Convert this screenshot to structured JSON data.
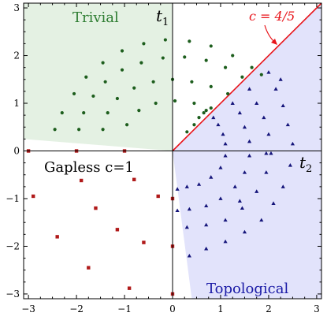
{
  "chart_data": {
    "type": "scatter",
    "xlim": [
      -3.1,
      3.1
    ],
    "ylim": [
      -3.1,
      3.1
    ],
    "xticks": [
      -3,
      -2,
      -1,
      0,
      1,
      2,
      3
    ],
    "yticks": [
      -3,
      -2,
      -1,
      0,
      1,
      2,
      3
    ],
    "xtick_labels": [
      "−3",
      "−2",
      "−1",
      "0",
      "1",
      "2",
      "3"
    ],
    "ytick_labels": [
      "−3",
      "−2",
      "−1",
      "0",
      "1",
      "2",
      "3"
    ],
    "axis_labels": {
      "t1": "t",
      "t1_sub": "1",
      "t2": "t",
      "t2_sub": "2"
    },
    "regions": [
      {
        "name": "trivial",
        "label": "Trivial",
        "fill": "#e4f1e3",
        "text_color": "#2e7d32",
        "polygon": [
          [
            -3.1,
            3.1
          ],
          [
            0,
            3.1
          ],
          [
            0,
            0
          ],
          [
            -3.1,
            0.25
          ]
        ]
      },
      {
        "name": "topological",
        "label": "Topological",
        "fill": "#e2e3fb",
        "text_color": "#1a1aa6",
        "polygon": [
          [
            3.1,
            -3.1
          ],
          [
            3.1,
            3.1
          ],
          [
            0,
            0
          ],
          [
            0.4,
            -3.1
          ]
        ]
      }
    ],
    "gapless_label": "Gapless c=1",
    "critical_line": {
      "label": "c = 4/5",
      "color": "#e8141a",
      "from": [
        0,
        0
      ],
      "to": [
        3.1,
        3.1
      ]
    },
    "colors": {
      "trivial": "#1d5e1d",
      "topological": "#14147a",
      "gapless": "#b01a1a",
      "axis": "#000000"
    },
    "series": [
      {
        "name": "trivial",
        "marker": "circle",
        "points": [
          [
            0.3,
            0.4
          ],
          [
            0.45,
            0.55
          ],
          [
            0.55,
            0.7
          ],
          [
            0.65,
            0.8
          ],
          [
            0.7,
            0.85
          ],
          [
            -2.45,
            0.45
          ],
          [
            -2.3,
            0.8
          ],
          [
            -2.05,
            1.2
          ],
          [
            -1.8,
            1.55
          ],
          [
            -1.45,
            1.85
          ],
          [
            -1.05,
            2.1
          ],
          [
            -0.6,
            2.25
          ],
          [
            -0.15,
            2.33
          ],
          [
            0.35,
            2.3
          ],
          [
            0.8,
            2.2
          ],
          [
            1.25,
            2.0
          ],
          [
            1.65,
            1.75
          ],
          [
            1.85,
            1.6
          ],
          [
            -1.95,
            0.45
          ],
          [
            -1.85,
            0.8
          ],
          [
            -1.65,
            1.15
          ],
          [
            -1.4,
            1.45
          ],
          [
            -1.05,
            1.7
          ],
          [
            -0.65,
            1.85
          ],
          [
            -0.2,
            1.95
          ],
          [
            0.25,
            1.97
          ],
          [
            0.7,
            1.9
          ],
          [
            1.1,
            1.75
          ],
          [
            1.45,
            1.55
          ],
          [
            -1.45,
            0.45
          ],
          [
            -1.35,
            0.8
          ],
          [
            -1.15,
            1.1
          ],
          [
            -0.8,
            1.32
          ],
          [
            -0.4,
            1.45
          ],
          [
            0,
            1.5
          ],
          [
            0.4,
            1.45
          ],
          [
            0.8,
            1.35
          ],
          [
            1.15,
            1.2
          ],
          [
            -0.95,
            0.55
          ],
          [
            -0.7,
            0.85
          ],
          [
            -0.35,
            1.0
          ],
          [
            0.05,
            1.05
          ],
          [
            0.45,
            1.0
          ],
          [
            0.8,
            0.9
          ]
        ]
      },
      {
        "name": "topological",
        "marker": "triangle",
        "points": [
          [
            0.85,
            0.7
          ],
          [
            0.95,
            0.55
          ],
          [
            1.05,
            0.35
          ],
          [
            1.1,
            0.15
          ],
          [
            1.1,
            -0.1
          ],
          [
            1.0,
            -0.35
          ],
          [
            0.8,
            -0.55
          ],
          [
            0.55,
            -0.7
          ],
          [
            0.3,
            -0.75
          ],
          [
            0.1,
            -0.8
          ],
          [
            1.25,
            1.0
          ],
          [
            1.4,
            0.8
          ],
          [
            1.5,
            0.5
          ],
          [
            1.6,
            0.2
          ],
          [
            1.6,
            -0.1
          ],
          [
            1.5,
            -0.45
          ],
          [
            1.3,
            -0.75
          ],
          [
            1.0,
            -1.0
          ],
          [
            0.7,
            -1.15
          ],
          [
            0.35,
            -1.22
          ],
          [
            0.1,
            -1.25
          ],
          [
            1.6,
            1.3
          ],
          [
            1.75,
            1.0
          ],
          [
            1.9,
            0.7
          ],
          [
            2.0,
            0.35
          ],
          [
            2.05,
            -0.05
          ],
          [
            1.95,
            -0.45
          ],
          [
            1.75,
            -0.85
          ],
          [
            1.45,
            -1.2
          ],
          [
            1.1,
            -1.45
          ],
          [
            0.7,
            -1.55
          ],
          [
            0.3,
            -1.6
          ],
          [
            2.0,
            1.65
          ],
          [
            2.15,
            1.3
          ],
          [
            2.3,
            0.95
          ],
          [
            2.4,
            0.55
          ],
          [
            2.5,
            0.15
          ],
          [
            2.45,
            -0.3
          ],
          [
            2.3,
            -0.75
          ],
          [
            2.1,
            -1.1
          ],
          [
            1.85,
            -1.45
          ],
          [
            1.5,
            -1.7
          ],
          [
            1.1,
            -1.9
          ],
          [
            0.7,
            -2.05
          ],
          [
            0.35,
            -2.2
          ],
          [
            2.25,
            1.5
          ],
          [
            1.95,
            -0.05
          ],
          [
            1.4,
            -1.05
          ]
        ]
      },
      {
        "name": "gapless",
        "marker": "square",
        "points": [
          [
            -3.0,
            0.0
          ],
          [
            -2.0,
            0.0
          ],
          [
            -1.0,
            0.0
          ],
          [
            -2.9,
            -0.95
          ],
          [
            -1.9,
            -0.62
          ],
          [
            -0.8,
            -0.6
          ],
          [
            -0.3,
            -0.95
          ],
          [
            0.0,
            -1.0
          ],
          [
            -1.6,
            -1.2
          ],
          [
            -2.4,
            -1.8
          ],
          [
            -1.15,
            -1.65
          ],
          [
            -0.6,
            -1.92
          ],
          [
            0.0,
            -2.0
          ],
          [
            -1.75,
            -2.45
          ],
          [
            -0.9,
            -2.88
          ],
          [
            0.0,
            -3.0
          ]
        ]
      }
    ]
  }
}
